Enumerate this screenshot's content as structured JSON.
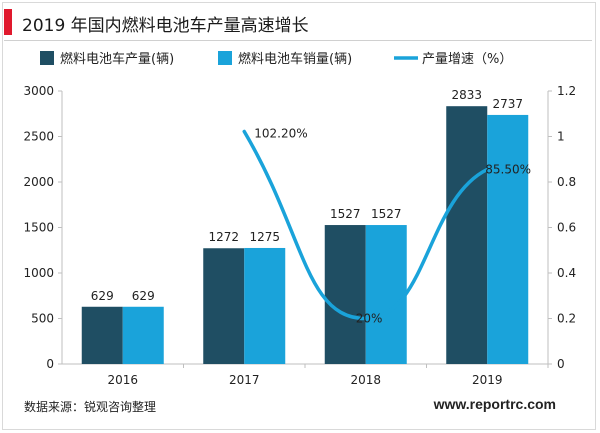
{
  "header": {
    "title": "2019 年国内燃料电池车产量高速增长",
    "accent_color": "#e0192d"
  },
  "footer": {
    "source": "数据来源：锐观咨询整理",
    "website": "www.reportrc.com"
  },
  "chart_data": {
    "type": "bar",
    "categories": [
      "2016",
      "2017",
      "2018",
      "2019"
    ],
    "series": [
      {
        "name": "燃料电池车产量(辆)",
        "kind": "bar",
        "axis": "left",
        "color": "#1f4e63",
        "values": [
          629,
          1272,
          1527,
          2833
        ],
        "labels": [
          "629",
          "1272",
          "1527",
          "2833"
        ]
      },
      {
        "name": "燃料电池车销量(辆)",
        "kind": "bar",
        "axis": "left",
        "color": "#1aa3da",
        "values": [
          629,
          1275,
          1527,
          2737
        ],
        "labels": [
          "629",
          "1275",
          "1527",
          "2737"
        ]
      },
      {
        "name": "产量增速（%）",
        "kind": "line",
        "axis": "right",
        "color": "#1aa3da",
        "x": [
          "2017",
          "2018",
          "2019"
        ],
        "values": [
          1.022,
          0.2,
          0.855
        ],
        "labels": [
          "102.20%",
          "20%",
          "85.50%"
        ]
      }
    ],
    "y_left": {
      "min": 0,
      "max": 3000,
      "ticks": [
        "0",
        "500",
        "1000",
        "1500",
        "2000",
        "2500",
        "3000"
      ]
    },
    "y_right": {
      "min": 0,
      "max": 1.2,
      "ticks": [
        "0",
        "0.2",
        "0.4",
        "0.6",
        "0.8",
        "1",
        "1.2"
      ]
    },
    "grid": false,
    "legend_position": "top"
  }
}
